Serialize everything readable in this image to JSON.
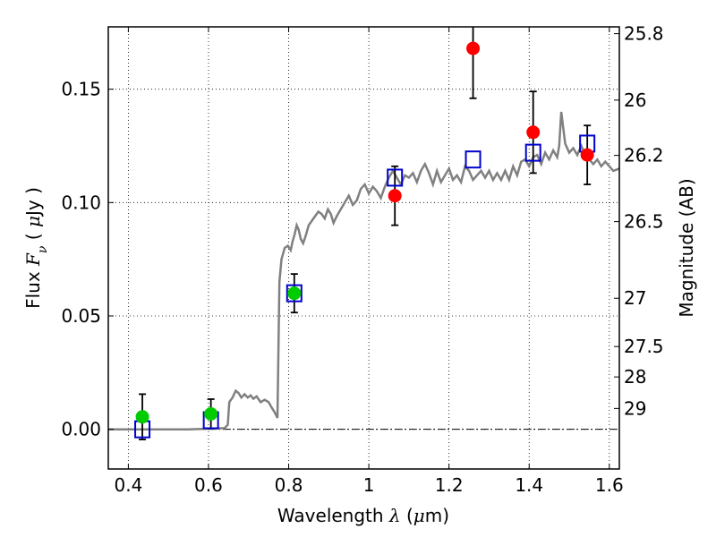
{
  "chart_data": {
    "type": "scatter",
    "xlabel": "Wavelength  λ (μm)",
    "ylabel": "Flux  F_ν  ( μJy )",
    "ylabel_parts": [
      "Flux  ",
      "F",
      "ν",
      "  ( ",
      "μ",
      "Jy )"
    ],
    "xlabel_parts": [
      "Wavelength  ",
      "λ",
      " (",
      "μ",
      "m)"
    ],
    "y2label": "Magnitude (AB)",
    "xlim": [
      0.35,
      1.625
    ],
    "ylim": [
      -0.0175,
      0.1775
    ],
    "grid": true,
    "x_ticks": [
      0.4,
      0.6,
      0.8,
      1.0,
      1.2,
      1.4,
      1.6
    ],
    "x_tick_labels": [
      "0.4",
      "0.6",
      "0.8",
      "1",
      "1.2",
      "1.4",
      "1.6"
    ],
    "y_ticks": [
      0.0,
      0.05,
      0.1,
      0.15
    ],
    "y_tick_labels": [
      "0.00",
      "0.05",
      "0.10",
      "0.15"
    ],
    "y2_ticks": [
      {
        "label": "25.8",
        "flux": 0.1745
      },
      {
        "label": "26",
        "flux": 0.1452
      },
      {
        "label": "26.2",
        "flux": 0.1208
      },
      {
        "label": "26.5",
        "flux": 0.0916
      },
      {
        "label": "27",
        "flux": 0.0578
      },
      {
        "label": "27.5",
        "flux": 0.0365
      },
      {
        "label": "28",
        "flux": 0.0231
      },
      {
        "label": "29",
        "flux": 0.0092
      }
    ],
    "model_spectrum": {
      "color": "#808080",
      "points": [
        [
          0.35,
          0.0
        ],
        [
          0.55,
          0.0
        ],
        [
          0.64,
          0.0005
        ],
        [
          0.648,
          0.002
        ],
        [
          0.652,
          0.012
        ],
        [
          0.66,
          0.014
        ],
        [
          0.668,
          0.017
        ],
        [
          0.675,
          0.016
        ],
        [
          0.682,
          0.014
        ],
        [
          0.69,
          0.0155
        ],
        [
          0.698,
          0.014
        ],
        [
          0.705,
          0.015
        ],
        [
          0.712,
          0.0135
        ],
        [
          0.72,
          0.0145
        ],
        [
          0.73,
          0.012
        ],
        [
          0.74,
          0.013
        ],
        [
          0.75,
          0.012
        ],
        [
          0.758,
          0.0095
        ],
        [
          0.765,
          0.0075
        ],
        [
          0.772,
          0.005
        ],
        [
          0.777,
          0.065
        ],
        [
          0.782,
          0.075
        ],
        [
          0.79,
          0.08
        ],
        [
          0.798,
          0.081
        ],
        [
          0.805,
          0.079
        ],
        [
          0.81,
          0.083
        ],
        [
          0.815,
          0.086
        ],
        [
          0.82,
          0.09
        ],
        [
          0.825,
          0.088
        ],
        [
          0.83,
          0.084
        ],
        [
          0.836,
          0.082
        ],
        [
          0.842,
          0.085
        ],
        [
          0.85,
          0.09
        ],
        [
          0.858,
          0.092
        ],
        [
          0.866,
          0.094
        ],
        [
          0.874,
          0.096
        ],
        [
          0.882,
          0.095
        ],
        [
          0.89,
          0.093
        ],
        [
          0.898,
          0.097
        ],
        [
          0.905,
          0.095
        ],
        [
          0.912,
          0.091
        ],
        [
          0.92,
          0.094
        ],
        [
          0.93,
          0.097
        ],
        [
          0.94,
          0.1
        ],
        [
          0.95,
          0.103
        ],
        [
          0.96,
          0.099
        ],
        [
          0.97,
          0.101
        ],
        [
          0.98,
          0.106
        ],
        [
          0.99,
          0.108
        ],
        [
          1.0,
          0.104
        ],
        [
          1.01,
          0.107
        ],
        [
          1.02,
          0.105
        ],
        [
          1.03,
          0.102
        ],
        [
          1.04,
          0.107
        ],
        [
          1.05,
          0.111
        ],
        [
          1.06,
          0.114
        ],
        [
          1.07,
          0.111
        ],
        [
          1.08,
          0.108
        ],
        [
          1.09,
          0.112
        ],
        [
          1.1,
          0.111
        ],
        [
          1.11,
          0.113
        ],
        [
          1.12,
          0.109
        ],
        [
          1.13,
          0.114
        ],
        [
          1.14,
          0.117
        ],
        [
          1.15,
          0.113
        ],
        [
          1.16,
          0.108
        ],
        [
          1.17,
          0.114
        ],
        [
          1.18,
          0.109
        ],
        [
          1.19,
          0.112
        ],
        [
          1.2,
          0.115
        ],
        [
          1.21,
          0.11
        ],
        [
          1.22,
          0.112
        ],
        [
          1.23,
          0.109
        ],
        [
          1.24,
          0.116
        ],
        [
          1.25,
          0.114
        ],
        [
          1.26,
          0.11
        ],
        [
          1.27,
          0.112
        ],
        [
          1.28,
          0.114
        ],
        [
          1.29,
          0.111
        ],
        [
          1.3,
          0.114
        ],
        [
          1.31,
          0.11
        ],
        [
          1.32,
          0.113
        ],
        [
          1.33,
          0.11
        ],
        [
          1.34,
          0.114
        ],
        [
          1.35,
          0.11
        ],
        [
          1.36,
          0.116
        ],
        [
          1.37,
          0.112
        ],
        [
          1.38,
          0.118
        ],
        [
          1.39,
          0.119
        ],
        [
          1.4,
          0.116
        ],
        [
          1.41,
          0.12
        ],
        [
          1.42,
          0.121
        ],
        [
          1.43,
          0.117
        ],
        [
          1.44,
          0.122
        ],
        [
          1.45,
          0.119
        ],
        [
          1.46,
          0.123
        ],
        [
          1.47,
          0.12
        ],
        [
          1.475,
          0.125
        ],
        [
          1.48,
          0.14
        ],
        [
          1.49,
          0.126
        ],
        [
          1.5,
          0.122
        ],
        [
          1.51,
          0.124
        ],
        [
          1.52,
          0.121
        ],
        [
          1.53,
          0.125
        ],
        [
          1.54,
          0.121
        ],
        [
          1.55,
          0.119
        ],
        [
          1.56,
          0.117
        ],
        [
          1.57,
          0.119
        ],
        [
          1.58,
          0.116
        ],
        [
          1.59,
          0.118
        ],
        [
          1.6,
          0.116
        ],
        [
          1.61,
          0.114
        ],
        [
          1.625,
          0.115
        ]
      ]
    },
    "zero_line": {
      "y": 0.0,
      "style": "dash-dot"
    },
    "series": [
      {
        "marker": "circle",
        "color": "#00cc00",
        "points": [
          {
            "x": 0.435,
            "y": 0.0055,
            "err": 0.01
          },
          {
            "x": 0.606,
            "y": 0.0068,
            "err": 0.0065
          },
          {
            "x": 0.814,
            "y": 0.06,
            "err": 0.0085
          }
        ]
      },
      {
        "marker": "circle",
        "color": "#ff0000",
        "points": [
          {
            "x": 1.065,
            "y": 0.103,
            "err": 0.013
          },
          {
            "x": 1.26,
            "y": 0.168,
            "err": 0.022
          },
          {
            "x": 1.41,
            "y": 0.131,
            "err": 0.018
          },
          {
            "x": 1.545,
            "y": 0.121,
            "err": 0.013
          }
        ]
      },
      {
        "marker": "open-square",
        "color": "#0000cc",
        "points": [
          {
            "x": 0.435,
            "y": 0.0
          },
          {
            "x": 0.606,
            "y": 0.004
          },
          {
            "x": 0.814,
            "y": 0.06
          },
          {
            "x": 1.065,
            "y": 0.111
          },
          {
            "x": 1.26,
            "y": 0.119
          },
          {
            "x": 1.41,
            "y": 0.122
          },
          {
            "x": 1.545,
            "y": 0.126
          }
        ]
      }
    ]
  }
}
